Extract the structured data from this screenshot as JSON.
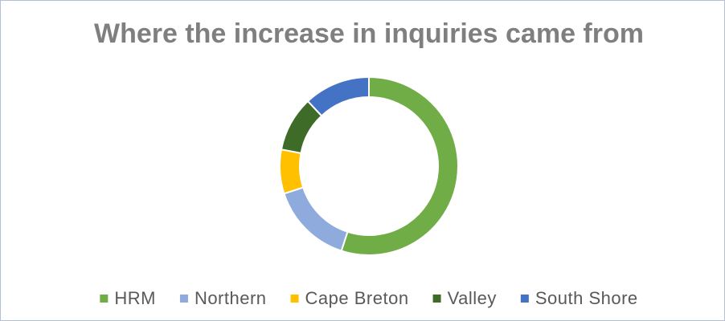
{
  "chart_data": {
    "type": "doughnut",
    "title": "Where the increase in inquiries came from",
    "categories": [
      "HRM",
      "Northern",
      "Cape Breton",
      "Valley",
      "South Shore"
    ],
    "values": [
      55,
      15,
      8,
      10,
      12
    ],
    "colors": [
      "#70ad47",
      "#8faadc",
      "#ffc000",
      "#3e6b27",
      "#4472c4"
    ],
    "legend": "bottom"
  }
}
